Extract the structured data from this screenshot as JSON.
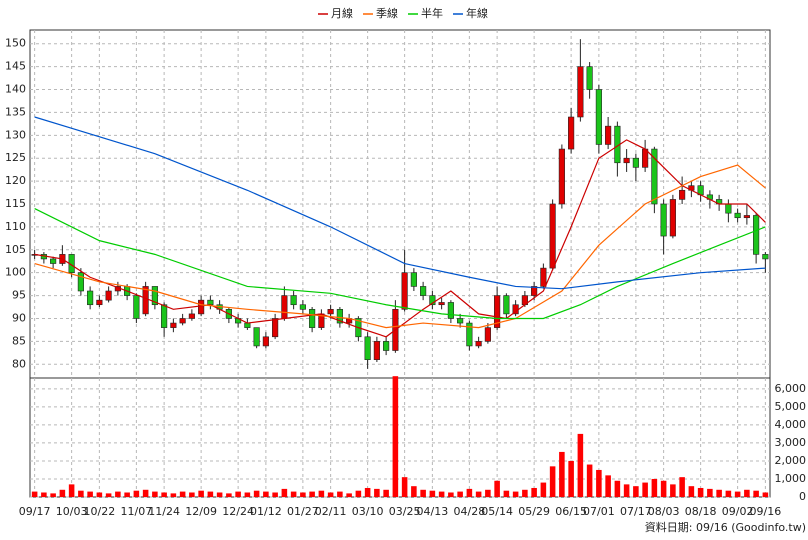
{
  "chart_data": {
    "type": "candlestick",
    "legend_position": "top",
    "grid": true,
    "x_ticks": [
      {
        "value": 0,
        "label": "09/17"
      },
      {
        "value": 4,
        "label": "10/03"
      },
      {
        "value": 7,
        "label": "10/22"
      },
      {
        "value": 11,
        "label": "11/07"
      },
      {
        "value": 14,
        "label": "11/24"
      },
      {
        "value": 18,
        "label": "12/09"
      },
      {
        "value": 22,
        "label": "12/24"
      },
      {
        "value": 25,
        "label": "01/12"
      },
      {
        "value": 29,
        "label": "01/27"
      },
      {
        "value": 32,
        "label": "02/11"
      },
      {
        "value": 36,
        "label": "03/10"
      },
      {
        "value": 40,
        "label": "03/25"
      },
      {
        "value": 43,
        "label": "04/13"
      },
      {
        "value": 47,
        "label": "04/28"
      },
      {
        "value": 50,
        "label": "05/14"
      },
      {
        "value": 54,
        "label": "05/29"
      },
      {
        "value": 58,
        "label": "06/15"
      },
      {
        "value": 61,
        "label": "07/01"
      },
      {
        "value": 65,
        "label": "07/17"
      },
      {
        "value": 68,
        "label": "08/03"
      },
      {
        "value": 72,
        "label": "08/18"
      },
      {
        "value": 76,
        "label": "09/02"
      },
      {
        "value": 79,
        "label": "09/16"
      }
    ],
    "xlim": [
      -0.5,
      79.5
    ],
    "ylim": [
      77,
      153
    ],
    "yticks": [
      80,
      85,
      90,
      95,
      100,
      105,
      110,
      115,
      120,
      125,
      130,
      135,
      140,
      145,
      150
    ],
    "y2lim": [
      0,
      6600
    ],
    "y2ticks": [
      0,
      {
        "value": 1000,
        "label": "1,000"
      },
      {
        "value": 2000,
        "label": "2,000"
      },
      {
        "value": 3000,
        "label": "3,000"
      },
      {
        "value": 4000,
        "label": "4,000"
      },
      {
        "value": 5000,
        "label": "5,000"
      },
      {
        "value": 6000,
        "label": "6,000"
      }
    ],
    "up_color": "#e00000",
    "down_color": "#1bc41b",
    "volume_color": "#ff0000",
    "ohlc": [
      [
        104,
        105,
        103,
        104
      ],
      [
        104,
        104.5,
        102,
        103
      ],
      [
        103,
        103.5,
        101,
        102
      ],
      [
        102,
        106,
        101.5,
        104
      ],
      [
        104,
        104,
        99,
        100
      ],
      [
        100,
        101,
        95,
        96
      ],
      [
        96,
        97,
        92,
        93
      ],
      [
        93,
        95,
        92.5,
        94
      ],
      [
        94,
        97,
        93.5,
        96
      ],
      [
        96,
        98,
        95,
        97
      ],
      [
        97,
        97.5,
        94,
        95
      ],
      [
        95,
        95.5,
        89,
        90
      ],
      [
        91,
        98,
        90.5,
        97
      ],
      [
        97,
        97,
        92,
        93
      ],
      [
        93,
        93.5,
        86,
        88
      ],
      [
        88,
        90,
        87,
        89
      ],
      [
        89,
        91,
        88.5,
        90
      ],
      [
        90,
        92,
        89.5,
        91
      ],
      [
        91,
        95,
        90.5,
        94
      ],
      [
        94,
        95,
        92,
        93
      ],
      [
        93,
        94,
        91,
        92
      ],
      [
        92,
        92.5,
        89,
        90
      ],
      [
        90,
        91,
        88,
        89
      ],
      [
        89,
        90,
        87.5,
        88
      ],
      [
        88,
        88,
        83.5,
        84
      ],
      [
        84,
        87,
        83.5,
        86
      ],
      [
        86,
        91,
        85.5,
        90
      ],
      [
        90,
        97,
        89.5,
        95
      ],
      [
        95,
        96,
        92,
        93
      ],
      [
        93,
        94,
        91,
        92
      ],
      [
        92,
        92.5,
        87,
        88
      ],
      [
        88,
        92,
        87.5,
        91
      ],
      [
        91,
        93,
        90,
        92
      ],
      [
        92,
        92.5,
        88,
        89
      ],
      [
        89,
        91,
        88,
        90
      ],
      [
        90,
        90.5,
        85,
        86
      ],
      [
        86,
        87,
        79,
        81
      ],
      [
        81,
        86,
        80.5,
        85
      ],
      [
        85,
        86,
        82,
        83
      ],
      [
        83,
        94,
        82.5,
        92
      ],
      [
        92,
        105,
        91.5,
        100
      ],
      [
        100,
        101,
        96,
        97
      ],
      [
        97,
        98,
        94,
        95
      ],
      [
        95,
        96,
        92,
        93
      ],
      [
        93,
        94.5,
        92,
        93.5
      ],
      [
        93.5,
        94,
        89,
        90
      ],
      [
        90,
        91,
        88,
        89
      ],
      [
        89,
        89.5,
        83,
        84
      ],
      [
        84,
        86,
        83.5,
        85
      ],
      [
        85,
        89,
        84.5,
        88
      ],
      [
        88,
        97,
        87.5,
        95
      ],
      [
        95,
        95.5,
        90,
        91
      ],
      [
        91,
        94,
        90.5,
        93
      ],
      [
        93,
        96,
        92.5,
        95
      ],
      [
        95,
        98,
        94,
        97
      ],
      [
        97,
        102,
        96.5,
        101
      ],
      [
        101,
        116,
        100.5,
        115
      ],
      [
        115,
        128,
        114,
        127
      ],
      [
        127,
        136,
        126,
        134
      ],
      [
        134,
        151,
        133,
        145
      ],
      [
        145,
        146,
        138,
        140
      ],
      [
        140,
        141,
        126,
        128
      ],
      [
        128,
        134,
        127,
        132
      ],
      [
        132,
        133,
        121,
        124
      ],
      [
        124,
        127,
        122,
        125
      ],
      [
        125,
        126,
        120,
        123
      ],
      [
        123,
        129,
        122,
        127
      ],
      [
        127,
        127.5,
        113,
        115
      ],
      [
        115,
        116,
        104,
        108
      ],
      [
        108,
        117,
        107.5,
        116
      ],
      [
        116,
        121,
        115,
        118
      ],
      [
        118,
        120,
        116.5,
        119
      ],
      [
        119,
        120,
        115.5,
        117
      ],
      [
        117,
        118,
        114,
        116
      ],
      [
        116,
        117,
        113.5,
        115
      ],
      [
        115,
        116,
        111,
        113
      ],
      [
        113,
        114,
        111,
        112
      ],
      [
        112,
        115,
        110.5,
        112.5
      ],
      [
        112.5,
        113,
        102,
        104
      ],
      [
        104,
        104.5,
        100,
        103
      ]
    ],
    "volume": [
      300,
      250,
      200,
      400,
      700,
      350,
      300,
      250,
      200,
      300,
      250,
      350,
      400,
      300,
      250,
      200,
      300,
      250,
      350,
      300,
      250,
      200,
      300,
      250,
      350,
      300,
      250,
      450,
      300,
      250,
      300,
      350,
      250,
      300,
      200,
      350,
      500,
      450,
      400,
      6700,
      1100,
      600,
      400,
      350,
      300,
      250,
      300,
      450,
      300,
      400,
      900,
      350,
      300,
      400,
      500,
      800,
      1700,
      2500,
      2000,
      3500,
      1800,
      1500,
      1200,
      900,
      700,
      600,
      800,
      1000,
      900,
      700,
      1100,
      600,
      500,
      450,
      400,
      350,
      300,
      400,
      350,
      250
    ],
    "series": [
      {
        "name": "月線",
        "color": "#cc0000",
        "x": [
          0,
          3,
          6,
          10,
          15,
          19,
          23,
          27,
          31,
          35,
          38,
          42,
          45,
          48,
          51,
          55,
          58,
          61,
          64,
          66,
          70,
          74,
          77,
          79
        ],
        "values": [
          104,
          103,
          99,
          96,
          92,
          93,
          89,
          90,
          91,
          88,
          86,
          92,
          96,
          91,
          90,
          96,
          110,
          125,
          129,
          127,
          119,
          115,
          115,
          111
        ]
      },
      {
        "name": "季線",
        "color": "#ff6600",
        "x": [
          0,
          7,
          13,
          18,
          23,
          29,
          34,
          38,
          42,
          48,
          52,
          57,
          61,
          66,
          72,
          76,
          79
        ],
        "values": [
          102,
          98,
          96,
          93,
          92,
          91,
          90,
          88,
          89,
          88,
          90,
          96,
          106,
          115,
          121,
          123.5,
          118.5
        ]
      },
      {
        "name": "半年",
        "color": "#00cc00",
        "x": [
          0,
          7,
          13,
          23,
          32,
          38,
          44,
          50,
          55,
          59,
          63,
          69,
          74,
          79
        ],
        "values": [
          114,
          107,
          104,
          97,
          95.5,
          93,
          91,
          90,
          90,
          93,
          97,
          102,
          106,
          110
        ]
      },
      {
        "name": "年線",
        "color": "#0055cc",
        "x": [
          0,
          13,
          23,
          32,
          40,
          47,
          52,
          57,
          63,
          72,
          79
        ],
        "values": [
          134,
          126,
          118,
          110,
          102,
          99,
          97,
          96.5,
          98,
          100,
          101
        ]
      }
    ],
    "footer": "資料日期: 09/16 (Goodinfo.tw)"
  }
}
